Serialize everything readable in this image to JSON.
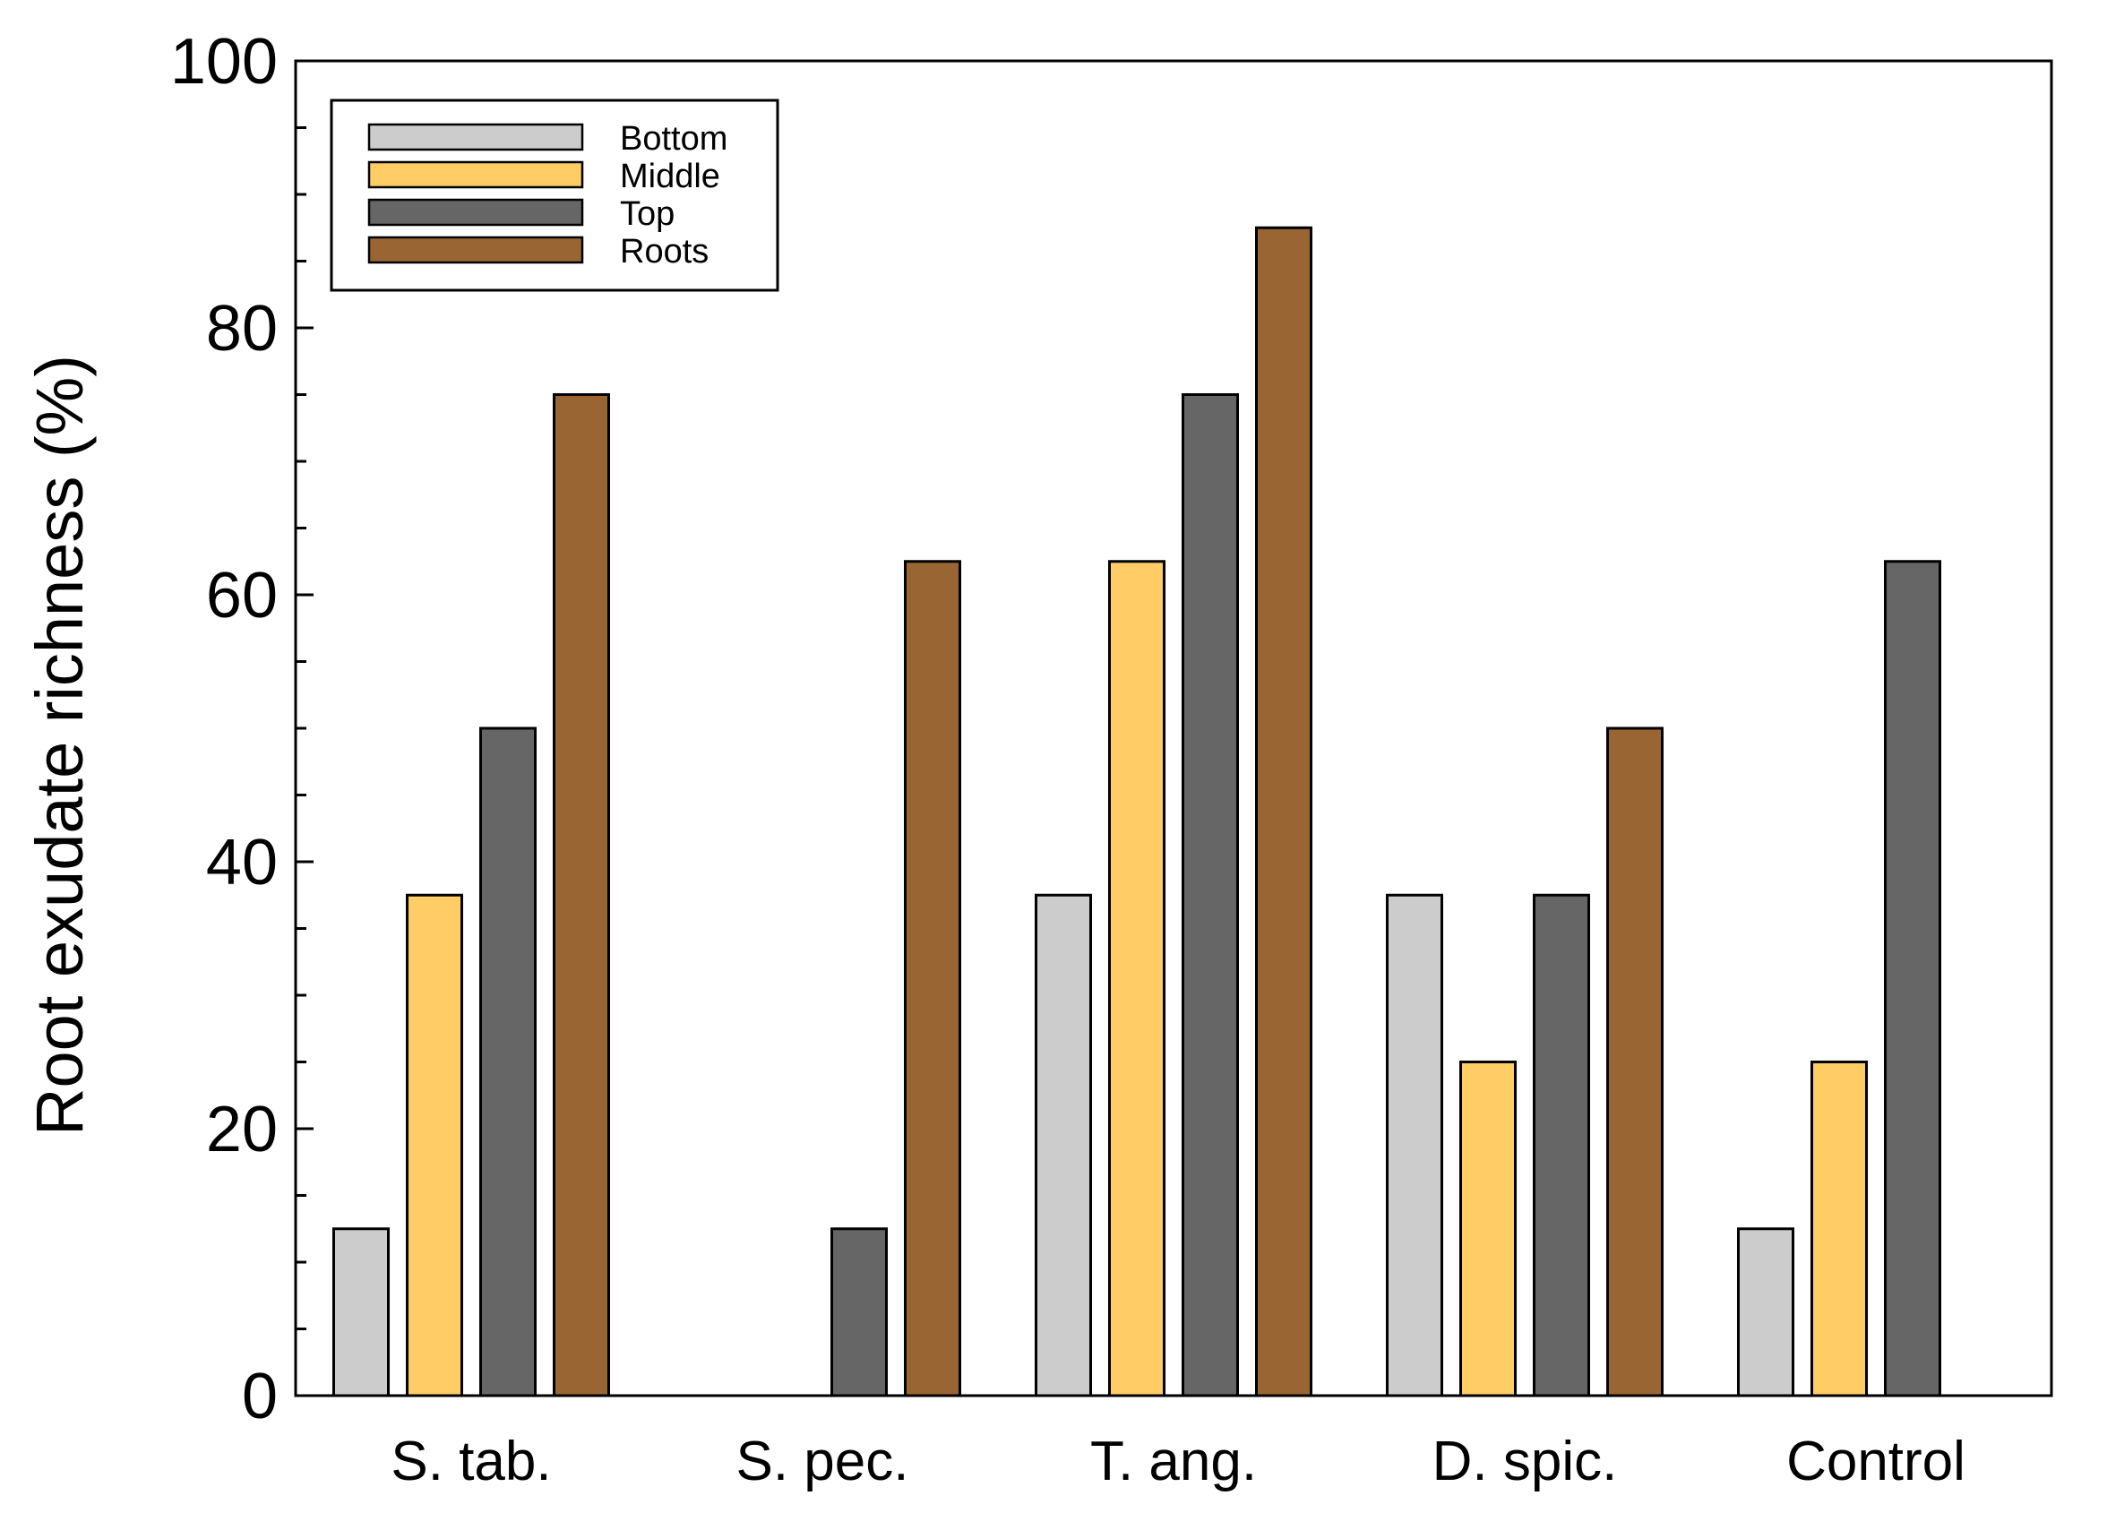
{
  "chart_data": {
    "type": "bar",
    "title": "",
    "xlabel": "",
    "ylabel": "Root exudate richness (%)",
    "ylim": [
      0,
      100
    ],
    "yticks": [
      0,
      20,
      40,
      60,
      80,
      100
    ],
    "y_minor_step": 5,
    "categories": [
      "S. tab.",
      "S. pec.",
      "T. ang.",
      "D. spic.",
      "Control"
    ],
    "series": [
      {
        "name": "Bottom",
        "color": "#cccccc",
        "values": [
          12.5,
          0,
          37.5,
          37.5,
          12.5
        ]
      },
      {
        "name": "Middle",
        "color": "#ffcc66",
        "values": [
          37.5,
          0,
          62.5,
          25,
          25
        ]
      },
      {
        "name": "Top",
        "color": "#666666",
        "values": [
          50,
          12.5,
          75,
          37.5,
          62.5
        ]
      },
      {
        "name": "Roots",
        "color": "#996633",
        "values": [
          75,
          62.5,
          87.5,
          50,
          0
        ]
      }
    ],
    "legend_position": "top-left",
    "grid": false
  }
}
